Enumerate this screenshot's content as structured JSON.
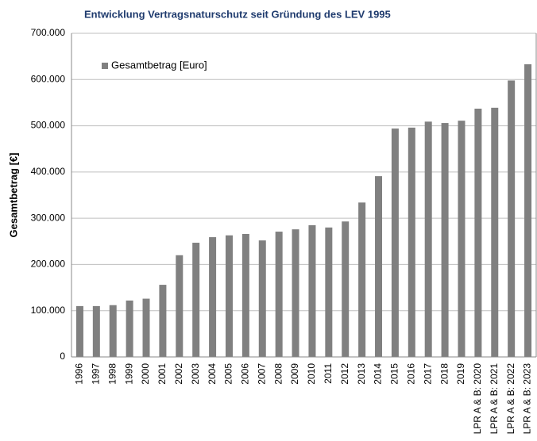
{
  "chart_data": {
    "type": "bar",
    "title": "Entwicklung Vertragsnaturschutz seit Gründung des LEV 1995",
    "y_label": "Gesamtbetrag [€]",
    "categories": [
      "1996",
      "1997",
      "1998",
      "1999",
      "2000",
      "2001",
      "2002",
      "2003",
      "2004",
      "2005",
      "2006",
      "2007",
      "2008",
      "2009",
      "2010",
      "2011",
      "2012",
      "2013",
      "2014",
      "2015",
      "2016",
      "2017",
      "2018",
      "2019",
      "LPR A & B: 2020",
      "LPR A & B: 2021",
      "LPR A & B: 2022",
      "LPR A & B: 2023"
    ],
    "series": [
      {
        "name": "Gesamtbetrag [Euro]",
        "color": "#808080",
        "values": [
          110000,
          110000,
          112000,
          122000,
          126000,
          156000,
          220000,
          247000,
          259000,
          263000,
          266000,
          252000,
          271000,
          276000,
          285000,
          280000,
          293000,
          334000,
          391000,
          494000,
          496000,
          509000,
          506000,
          511000,
          537000,
          539000,
          598000,
          633000
        ]
      }
    ],
    "ylim": [
      0,
      700000
    ],
    "yticks": [
      0,
      {
        "value": 100000,
        "label": "100.000"
      },
      {
        "value": 200000,
        "label": "200.000"
      },
      {
        "value": 300000,
        "label": "300.000"
      },
      {
        "value": 400000,
        "label": "400.000"
      },
      {
        "value": 500000,
        "label": "500.000"
      },
      {
        "value": 600000,
        "label": "600.000"
      },
      {
        "value": 700000,
        "label": "700.000"
      }
    ],
    "grid": true,
    "legend": "upper left"
  }
}
